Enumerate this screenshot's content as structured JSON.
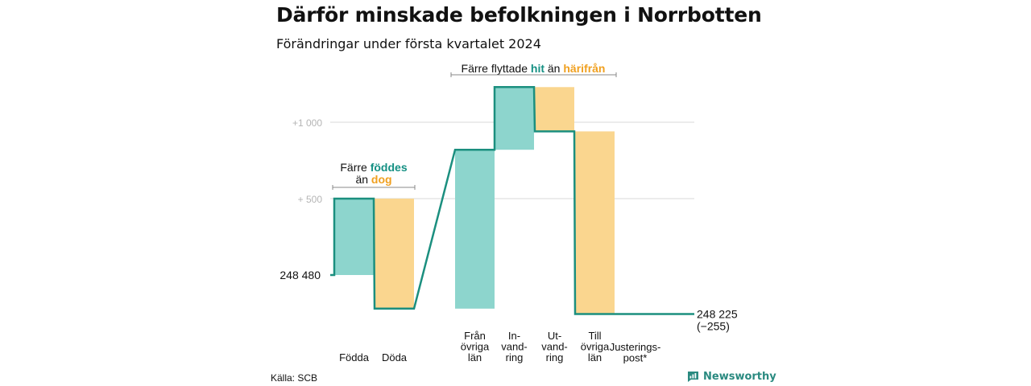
{
  "title": "Därför minskade befolkningen i Norrbotten",
  "subtitle": "Förändringar under första kvartalet 2024",
  "source": "Källa: SCB",
  "brand": "Newsworthy",
  "colors": {
    "gain": "#8dd5cd",
    "loss": "#fad68f",
    "line": "#1b8f7f",
    "grid": "#d9d9d9",
    "gain_text": "#159083",
    "loss_text": "#f0a020"
  },
  "chart_data": {
    "type": "waterfall",
    "title": "Därför minskade befolkningen i Norrbotten",
    "subtitle": "Förändringar under första kvartalet 2024",
    "start_value": 248480,
    "start_label": "248   480",
    "end_value": 248225,
    "end_label": "248 225",
    "end_change_label": "(−255)",
    "y_ticks": [
      {
        "label": "+   500",
        "value": 500
      },
      {
        "label": "+1   000",
        "value": 1000
      }
    ],
    "ylim": [
      -330,
      1260
    ],
    "steps": [
      {
        "label": [
          "Födda"
        ],
        "value": 500,
        "kind": "gain"
      },
      {
        "label": [
          "Döda"
        ],
        "value": -720,
        "kind": "loss"
      },
      {
        "label": [
          "Från",
          "övriga",
          "län"
        ],
        "value": 1040,
        "kind": "gain"
      },
      {
        "label": [
          "In-",
          "vand-",
          "ring"
        ],
        "value": 410,
        "kind": "gain"
      },
      {
        "label": [
          "Ut-",
          "vand-",
          "ring"
        ],
        "value": -290,
        "kind": "loss"
      },
      {
        "label": [
          "Till",
          "övriga",
          "län"
        ],
        "value": -1195,
        "kind": "loss"
      },
      {
        "label": [
          "Justerings-",
          "post*"
        ],
        "value": 0,
        "kind": "none"
      }
    ],
    "annotations": [
      {
        "lines": [
          [
            {
              "t": "Färre ",
              "c": "dark"
            },
            {
              "t": "föddes",
              "c": "gain"
            }
          ],
          [
            {
              "t": "än ",
              "c": "dark"
            },
            {
              "t": "dog",
              "c": "loss"
            }
          ]
        ]
      },
      {
        "lines": [
          [
            {
              "t": "Färre flyttade ",
              "c": "dark"
            },
            {
              "t": "hit",
              "c": "gain"
            },
            {
              "t": "  än ",
              "c": "dark"
            },
            {
              "t": "härifrån",
              "c": "loss"
            }
          ]
        ]
      }
    ]
  }
}
